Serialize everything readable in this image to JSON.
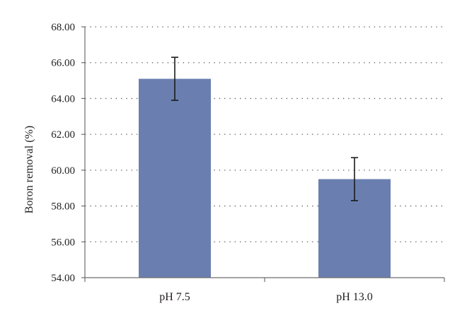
{
  "chart_data": {
    "type": "bar",
    "categories": [
      "pH 7.5",
      "pH 13.0"
    ],
    "values": [
      65.1,
      59.5
    ],
    "error": [
      1.2,
      1.2
    ],
    "title": "",
    "xlabel": "",
    "ylabel": "Boron removal (%)",
    "ylim": [
      54,
      68
    ],
    "yticks": [
      "54.00",
      "56.00",
      "58.00",
      "60.00",
      "62.00",
      "64.00",
      "66.00",
      "68.00"
    ],
    "grid": true,
    "bar_color": "#6a7fb0"
  }
}
